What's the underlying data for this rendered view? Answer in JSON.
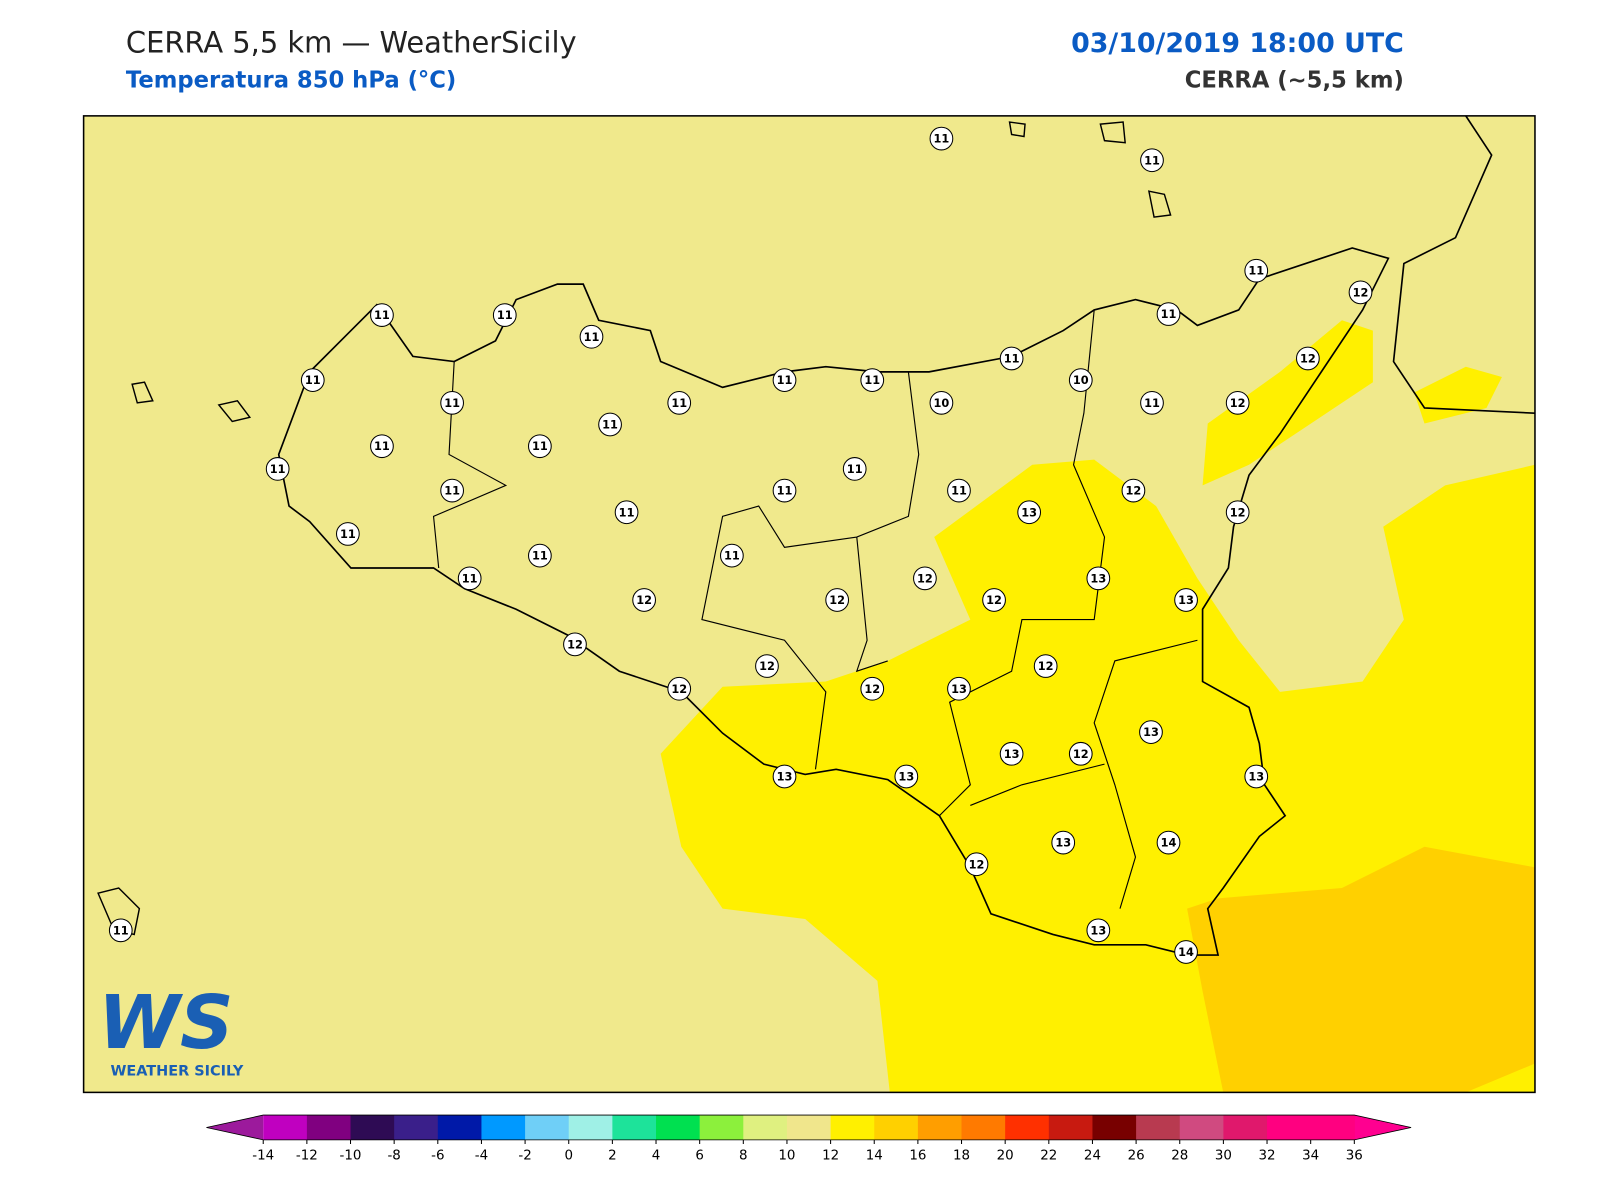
{
  "header": {
    "title": "CERRA 5,5 km — WeatherSicily",
    "subtitle": "Temperatura 850 hPa (°C)",
    "date": "03/10/2019 18:00 UTC",
    "model": "CERRA (~5,5 km)"
  },
  "stations": [
    11,
    11,
    11,
    12,
    11,
    11,
    11,
    11,
    11,
    12,
    11,
    11,
    11,
    10,
    11,
    11,
    10,
    11,
    12,
    11,
    11,
    11,
    11,
    11,
    11,
    11,
    11,
    12,
    11,
    13,
    12,
    11,
    11,
    11,
    11,
    13,
    12,
    12,
    12,
    12,
    13,
    12,
    12,
    12,
    12,
    12,
    13,
    13,
    13,
    12,
    13,
    13,
    13,
    13,
    14,
    12,
    11,
    13,
    14
  ],
  "colorbar": {
    "ticks": [
      -14,
      -12,
      -10,
      -8,
      -6,
      -4,
      -2,
      0,
      2,
      4,
      6,
      8,
      10,
      12,
      14,
      16,
      18,
      20,
      22,
      24,
      26,
      28,
      30,
      32,
      34,
      36
    ],
    "under_color": "#9c1a9c",
    "over_color": "#ff0090",
    "colors": [
      "#c000c0",
      "#800080",
      "#2e0b54",
      "#3a1f8a",
      "#0019a8",
      "#0099ff",
      "#6fcff7",
      "#9ff0e6",
      "#1de39a",
      "#00e050",
      "#8cf03c",
      "#dff080",
      "#f0e68c",
      "#fff000",
      "#ffd000",
      "#ff9e00",
      "#ff7a00",
      "#ff3000",
      "#c81a10",
      "#780000",
      "#b83a50",
      "#d04a80",
      "#e0186c",
      "#ff0080",
      "#ff0080"
    ]
  },
  "logo": {
    "letters": "WS",
    "name": "WEATHER SICILY"
  }
}
